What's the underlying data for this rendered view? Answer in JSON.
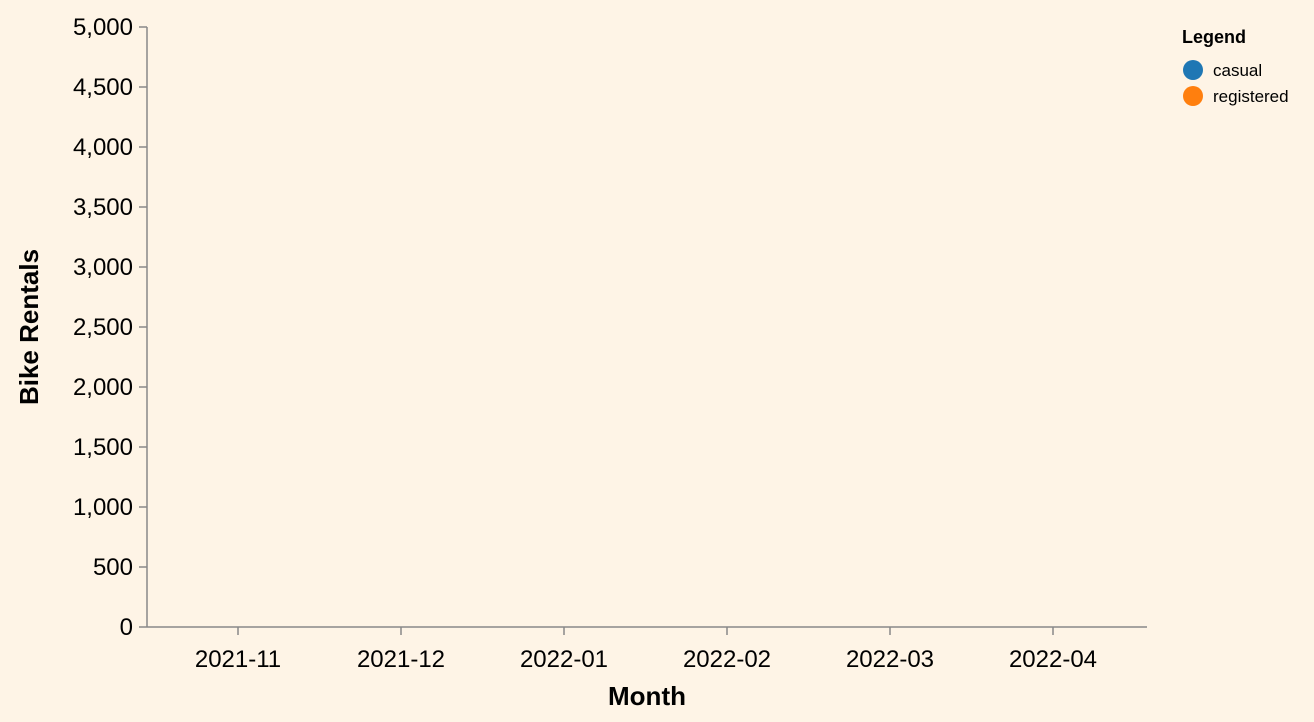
{
  "chart_data": {
    "type": "line",
    "title": "",
    "xlabel": "Month",
    "ylabel": "Bike Rentals",
    "x_tick_labels": [
      "2021-11",
      "2021-12",
      "2022-01",
      "2022-02",
      "2022-03",
      "2022-04"
    ],
    "y_tick_labels": [
      "0",
      "500",
      "1,000",
      "1,500",
      "2,000",
      "2,500",
      "3,000",
      "3,500",
      "4,000",
      "4,500",
      "5,000"
    ],
    "y_ticks": [
      0,
      500,
      1000,
      1500,
      2000,
      2500,
      3000,
      3500,
      4000,
      4500,
      5000
    ],
    "ylim": [
      0,
      5000
    ],
    "grid": false,
    "legend": {
      "title": "Legend",
      "placement": "top-right",
      "entries": [
        {
          "name": "casual",
          "color": "#1f77b4"
        },
        {
          "name": "registered",
          "color": "#ff7f0e"
        }
      ]
    },
    "series": [
      {
        "name": "casual",
        "color": "#1f77b4",
        "values": []
      },
      {
        "name": "registered",
        "color": "#ff7f0e",
        "values": []
      }
    ]
  }
}
